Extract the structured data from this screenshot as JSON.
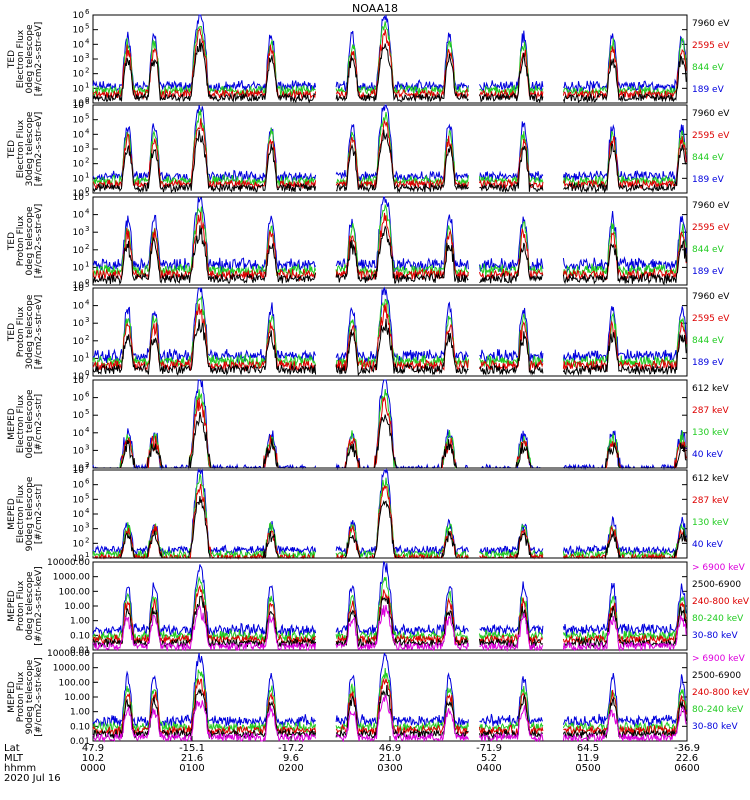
{
  "title": "NOAA18",
  "panels": [
    {
      "ylabel": [
        "TED",
        "Electron Flux",
        "0deg telescope",
        "[#/cm2-s-str-eV]"
      ],
      "ylog": [
        0,
        6
      ],
      "legend": [
        {
          "label": "7960 eV",
          "color": "#000000"
        },
        {
          "label": "2595 eV",
          "color": "#dd0000"
        },
        {
          "label": "844 eV",
          "color": "#22cc22"
        },
        {
          "label": "189 eV",
          "color": "#0000dd"
        }
      ]
    },
    {
      "ylabel": [
        "TED",
        "Electron Flux",
        "30deg telescope",
        "[#/cm2-s-str-eV]"
      ],
      "ylog": [
        0,
        6
      ],
      "legend": [
        {
          "label": "7960 eV",
          "color": "#000000"
        },
        {
          "label": "2595 eV",
          "color": "#dd0000"
        },
        {
          "label": "844 eV",
          "color": "#22cc22"
        },
        {
          "label": "189 eV",
          "color": "#0000dd"
        }
      ]
    },
    {
      "ylabel": [
        "TED",
        "Proton Flux",
        "0deg telescope",
        "[#/cm2-s-str-eV]"
      ],
      "ylog": [
        0,
        5
      ],
      "legend": [
        {
          "label": "7960 eV",
          "color": "#000000"
        },
        {
          "label": "2595 eV",
          "color": "#dd0000"
        },
        {
          "label": "844 eV",
          "color": "#22cc22"
        },
        {
          "label": "189 eV",
          "color": "#0000dd"
        }
      ]
    },
    {
      "ylabel": [
        "TED",
        "Proton Flux",
        "30deg telescope",
        "[#/cm2-s-str-eV]"
      ],
      "ylog": [
        0,
        5
      ],
      "legend": [
        {
          "label": "7960 eV",
          "color": "#000000"
        },
        {
          "label": "2595 eV",
          "color": "#dd0000"
        },
        {
          "label": "844 eV",
          "color": "#22cc22"
        },
        {
          "label": "189 eV",
          "color": "#0000dd"
        }
      ]
    },
    {
      "ylabel": [
        "MEPED",
        "Electron Flux",
        "0deg telescope",
        "[#/cm2-s-str]"
      ],
      "ylog": [
        2,
        7
      ],
      "legend": [
        {
          "label": "612 keV",
          "color": "#000000"
        },
        {
          "label": "287 keV",
          "color": "#dd0000"
        },
        {
          "label": "130 keV",
          "color": "#22cc22"
        },
        {
          "label": "40 keV",
          "color": "#0000dd"
        }
      ]
    },
    {
      "ylabel": [
        "MEPED",
        "Electron Flux",
        "90deg telescope",
        "[#/cm2-s-str]"
      ],
      "ylog": [
        1,
        7
      ],
      "legend": [
        {
          "label": "612 keV",
          "color": "#000000"
        },
        {
          "label": "287 keV",
          "color": "#dd0000"
        },
        {
          "label": "130 keV",
          "color": "#22cc22"
        },
        {
          "label": "40 keV",
          "color": "#0000dd"
        }
      ]
    },
    {
      "ylabel": [
        "MEPED",
        "Proton Flux",
        "0deg telescope",
        "[#/cm2-s-str-keV]"
      ],
      "ylog": [
        -2,
        4
      ],
      "yticks": [
        "10000.00",
        "1000.00",
        "100.00",
        "10.00",
        "1.00",
        "0.10",
        "0.01"
      ],
      "legend": [
        {
          "label": "> 6900 keV",
          "color": "#dd00dd"
        },
        {
          "label": "2500-6900",
          "color": "#000000"
        },
        {
          "label": "240-800 keV",
          "color": "#dd0000"
        },
        {
          "label": "80-240 keV",
          "color": "#22cc22"
        },
        {
          "label": "30-80 keV",
          "color": "#0000dd"
        }
      ]
    },
    {
      "ylabel": [
        "MEPED",
        "Proton Flux",
        "90deg telescope",
        "[#/cm2-s-str-keV]"
      ],
      "ylog": [
        -2,
        4
      ],
      "yticks": [
        "10000.00",
        "1000.00",
        "100.00",
        "10.00",
        "1.00",
        "0.10",
        "0.01"
      ],
      "legend": [
        {
          "label": "> 6900 keV",
          "color": "#dd00dd"
        },
        {
          "label": "2500-6900",
          "color": "#000000"
        },
        {
          "label": "240-800 keV",
          "color": "#dd0000"
        },
        {
          "label": "80-240 keV",
          "color": "#22cc22"
        },
        {
          "label": "30-80 keV",
          "color": "#0000dd"
        }
      ]
    }
  ],
  "xaxis": {
    "row_labels": [
      "Lat",
      "MLT",
      "hhmm",
      "2020 Jul 16"
    ],
    "lat": [
      "47.9",
      "-15.1",
      "-17.2",
      "46.9",
      "-71.9",
      "64.5",
      "-36.9"
    ],
    "mlt": [
      "10.2",
      "21.6",
      "9.6",
      "21.0",
      "5.2",
      "11.9",
      "22.6"
    ],
    "hhmm": [
      "0000",
      "0100",
      "0200",
      "0300",
      "0400",
      "0500",
      "0600"
    ]
  },
  "chart_data": {
    "type": "line",
    "title": "NOAA18",
    "x": [
      "0000",
      "0100",
      "0200",
      "0300",
      "0400",
      "0500",
      "0600"
    ],
    "x_range_hours": [
      0,
      6
    ],
    "data_gaps_hours": [
      [
        2.25,
        2.45
      ],
      [
        3.8,
        3.9
      ],
      [
        4.55,
        4.75
      ]
    ],
    "passes": [
      {
        "center_h": 0.35,
        "kind": "polar"
      },
      {
        "center_h": 0.62,
        "kind": "polar"
      },
      {
        "center_h": 1.08,
        "kind": "auroral"
      },
      {
        "center_h": 1.8,
        "kind": "polar"
      },
      {
        "center_h": 2.62,
        "kind": "polar"
      },
      {
        "center_h": 2.95,
        "kind": "auroral"
      },
      {
        "center_h": 3.6,
        "kind": "polar"
      },
      {
        "center_h": 4.35,
        "kind": "polar"
      },
      {
        "center_h": 5.25,
        "kind": "polar"
      },
      {
        "center_h": 5.95,
        "kind": "polar"
      }
    ],
    "series": [
      {
        "name": "7960 eV",
        "peak_log_flux": 3.0
      },
      {
        "name": "2595 eV",
        "peak_log_flux": 4.0
      },
      {
        "name": "844 eV",
        "peak_log_flux": 5.0
      },
      {
        "name": "189 eV",
        "peak_log_flux": 6.0
      }
    ]
  }
}
